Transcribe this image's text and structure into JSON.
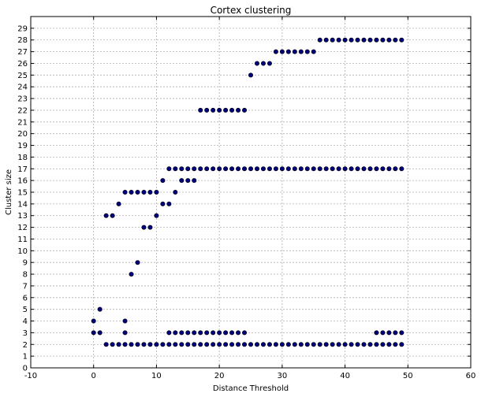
{
  "chart_data": {
    "type": "scatter",
    "title": "Cortex clustering",
    "xlabel": "Distance Threshold",
    "ylabel": "Cluster size",
    "xlim": [
      -10,
      60
    ],
    "ylim": [
      0,
      30
    ],
    "xticks": [
      "-10",
      "0",
      "10",
      "20",
      "30",
      "40",
      "50",
      "60"
    ],
    "yticks": [
      "0",
      "1",
      "2",
      "3",
      "4",
      "5",
      "6",
      "7",
      "8",
      "9",
      "10",
      "11",
      "12",
      "13",
      "14",
      "15",
      "16",
      "17",
      "18",
      "19",
      "20",
      "21",
      "22",
      "23",
      "24",
      "25",
      "26",
      "27",
      "28",
      "29"
    ],
    "grid": true,
    "marker_color": "#00007f",
    "points": [
      [
        0,
        3
      ],
      [
        0,
        4
      ],
      [
        1,
        3
      ],
      [
        1,
        5
      ],
      [
        2,
        2
      ],
      [
        2,
        13
      ],
      [
        3,
        2
      ],
      [
        3,
        13
      ],
      [
        4,
        2
      ],
      [
        4,
        14
      ],
      [
        5,
        2
      ],
      [
        5,
        3
      ],
      [
        5,
        4
      ],
      [
        5,
        15
      ],
      [
        6,
        2
      ],
      [
        6,
        8
      ],
      [
        6,
        15
      ],
      [
        7,
        2
      ],
      [
        7,
        9
      ],
      [
        7,
        15
      ],
      [
        8,
        2
      ],
      [
        8,
        12
      ],
      [
        8,
        15
      ],
      [
        9,
        2
      ],
      [
        9,
        12
      ],
      [
        9,
        15
      ],
      [
        10,
        2
      ],
      [
        10,
        13
      ],
      [
        10,
        15
      ],
      [
        11,
        2
      ],
      [
        11,
        14
      ],
      [
        11,
        16
      ],
      [
        12,
        2
      ],
      [
        12,
        3
      ],
      [
        12,
        14
      ],
      [
        12,
        17
      ],
      [
        13,
        2
      ],
      [
        13,
        3
      ],
      [
        13,
        15
      ],
      [
        13,
        17
      ],
      [
        14,
        2
      ],
      [
        14,
        3
      ],
      [
        14,
        16
      ],
      [
        14,
        17
      ],
      [
        15,
        2
      ],
      [
        15,
        3
      ],
      [
        15,
        16
      ],
      [
        15,
        17
      ],
      [
        16,
        2
      ],
      [
        16,
        3
      ],
      [
        16,
        16
      ],
      [
        16,
        17
      ],
      [
        17,
        2
      ],
      [
        17,
        3
      ],
      [
        17,
        17
      ],
      [
        17,
        22
      ],
      [
        18,
        2
      ],
      [
        18,
        3
      ],
      [
        18,
        17
      ],
      [
        18,
        22
      ],
      [
        19,
        2
      ],
      [
        19,
        3
      ],
      [
        19,
        17
      ],
      [
        19,
        22
      ],
      [
        20,
        2
      ],
      [
        20,
        3
      ],
      [
        20,
        17
      ],
      [
        20,
        22
      ],
      [
        21,
        2
      ],
      [
        21,
        3
      ],
      [
        21,
        17
      ],
      [
        21,
        22
      ],
      [
        22,
        2
      ],
      [
        22,
        3
      ],
      [
        22,
        17
      ],
      [
        22,
        22
      ],
      [
        23,
        2
      ],
      [
        23,
        3
      ],
      [
        23,
        17
      ],
      [
        23,
        22
      ],
      [
        24,
        2
      ],
      [
        24,
        3
      ],
      [
        24,
        17
      ],
      [
        24,
        22
      ],
      [
        25,
        2
      ],
      [
        25,
        17
      ],
      [
        25,
        25
      ],
      [
        26,
        2
      ],
      [
        26,
        17
      ],
      [
        26,
        26
      ],
      [
        27,
        2
      ],
      [
        27,
        17
      ],
      [
        27,
        26
      ],
      [
        28,
        2
      ],
      [
        28,
        17
      ],
      [
        28,
        26
      ],
      [
        29,
        2
      ],
      [
        29,
        17
      ],
      [
        29,
        27
      ],
      [
        30,
        2
      ],
      [
        30,
        17
      ],
      [
        30,
        27
      ],
      [
        31,
        2
      ],
      [
        31,
        17
      ],
      [
        31,
        27
      ],
      [
        32,
        2
      ],
      [
        32,
        17
      ],
      [
        32,
        27
      ],
      [
        33,
        2
      ],
      [
        33,
        17
      ],
      [
        33,
        27
      ],
      [
        34,
        2
      ],
      [
        34,
        17
      ],
      [
        34,
        27
      ],
      [
        35,
        2
      ],
      [
        35,
        17
      ],
      [
        35,
        27
      ],
      [
        36,
        2
      ],
      [
        36,
        17
      ],
      [
        36,
        28
      ],
      [
        37,
        2
      ],
      [
        37,
        17
      ],
      [
        37,
        28
      ],
      [
        38,
        2
      ],
      [
        38,
        17
      ],
      [
        38,
        28
      ],
      [
        39,
        2
      ],
      [
        39,
        17
      ],
      [
        39,
        28
      ],
      [
        40,
        2
      ],
      [
        40,
        17
      ],
      [
        40,
        28
      ],
      [
        41,
        2
      ],
      [
        41,
        17
      ],
      [
        41,
        28
      ],
      [
        42,
        2
      ],
      [
        42,
        17
      ],
      [
        42,
        28
      ],
      [
        43,
        2
      ],
      [
        43,
        17
      ],
      [
        43,
        28
      ],
      [
        44,
        2
      ],
      [
        44,
        17
      ],
      [
        44,
        28
      ],
      [
        45,
        2
      ],
      [
        45,
        3
      ],
      [
        45,
        17
      ],
      [
        45,
        28
      ],
      [
        46,
        2
      ],
      [
        46,
        3
      ],
      [
        46,
        17
      ],
      [
        46,
        28
      ],
      [
        47,
        2
      ],
      [
        47,
        3
      ],
      [
        47,
        17
      ],
      [
        47,
        28
      ],
      [
        48,
        2
      ],
      [
        48,
        3
      ],
      [
        48,
        17
      ],
      [
        48,
        28
      ],
      [
        49,
        2
      ],
      [
        49,
        3
      ],
      [
        49,
        17
      ],
      [
        49,
        28
      ]
    ]
  }
}
